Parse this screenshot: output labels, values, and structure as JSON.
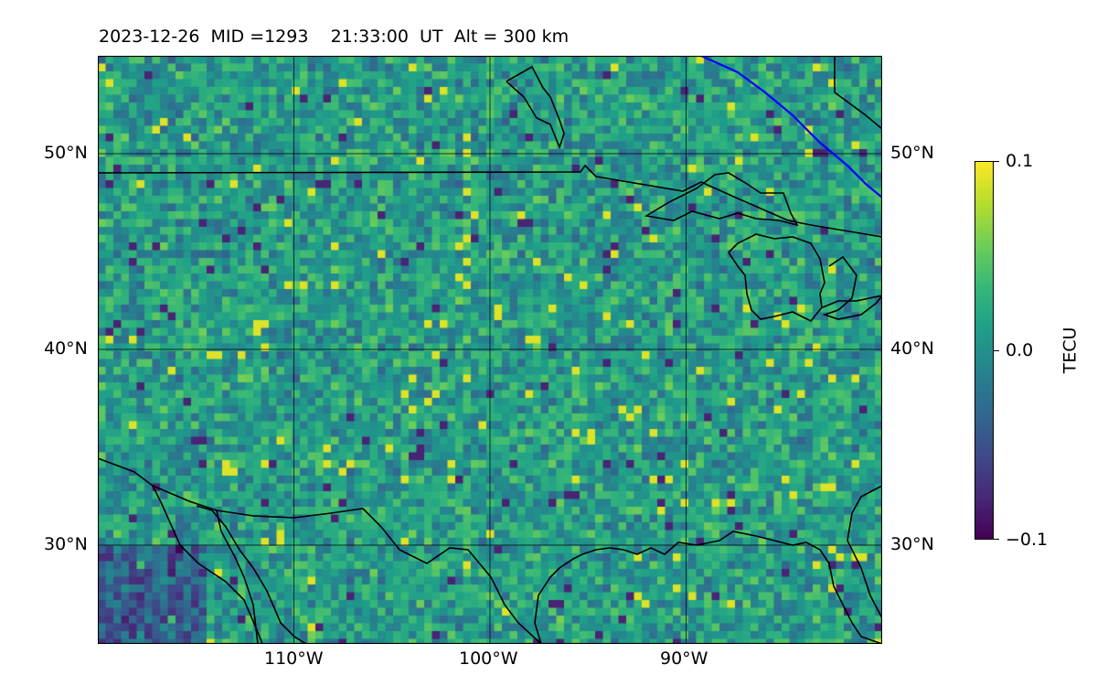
{
  "title": "2023-12-26  MID =1293    21:33:00  UT  Alt = 300 km",
  "map": {
    "extent": {
      "lon_min": -120,
      "lon_max": -80,
      "lat_min": 25,
      "lat_max": 55
    },
    "gridlines": {
      "lons": [
        -110,
        -100,
        -90
      ],
      "lats": [
        30,
        40,
        50
      ]
    },
    "lat_labels": [
      "50°N",
      "40°N",
      "30°N"
    ],
    "lon_labels": [
      "110°W",
      "100°W",
      "90°W"
    ],
    "terminator_color": "#0000ff",
    "coastline_color": "#000000",
    "colormap": "viridis"
  },
  "colorbar": {
    "label": "TECU",
    "min": -0.1,
    "max": 0.1,
    "tick_labels": [
      "0.1",
      "0.0",
      "−0.1"
    ]
  }
}
